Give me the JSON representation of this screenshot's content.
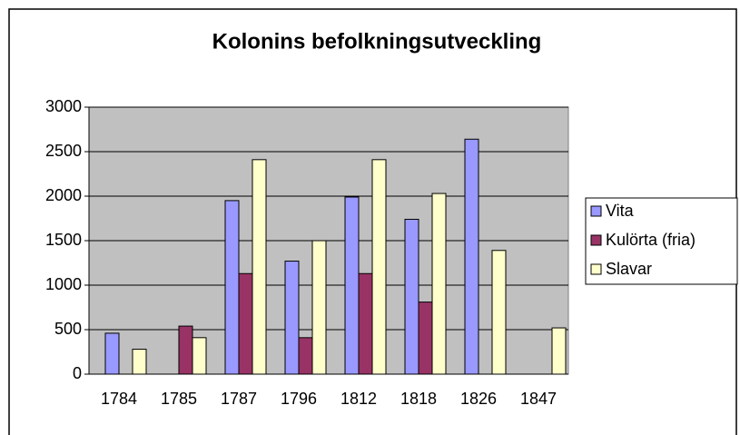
{
  "chart_data": {
    "type": "bar",
    "title": "Kolonins befolkningsutveckling",
    "categories": [
      "1784",
      "1785",
      "1787",
      "1796",
      "1812",
      "1818",
      "1826",
      "1847"
    ],
    "series": [
      {
        "name": "Vita",
        "color": "#9999ff",
        "values": [
          460,
          null,
          1950,
          1270,
          1990,
          1740,
          2640,
          null
        ]
      },
      {
        "name": "Kulörta (fria)",
        "color": "#993366",
        "values": [
          null,
          540,
          1130,
          410,
          1130,
          810,
          null,
          null
        ]
      },
      {
        "name": "Slavar",
        "color": "#ffffcc",
        "values": [
          280,
          410,
          2410,
          1500,
          2410,
          2030,
          1390,
          520
        ]
      }
    ],
    "ylim": [
      0,
      3000
    ],
    "yticks": [
      0,
      500,
      1000,
      1500,
      2000,
      2500,
      3000
    ],
    "grid": true,
    "legend": "right"
  }
}
